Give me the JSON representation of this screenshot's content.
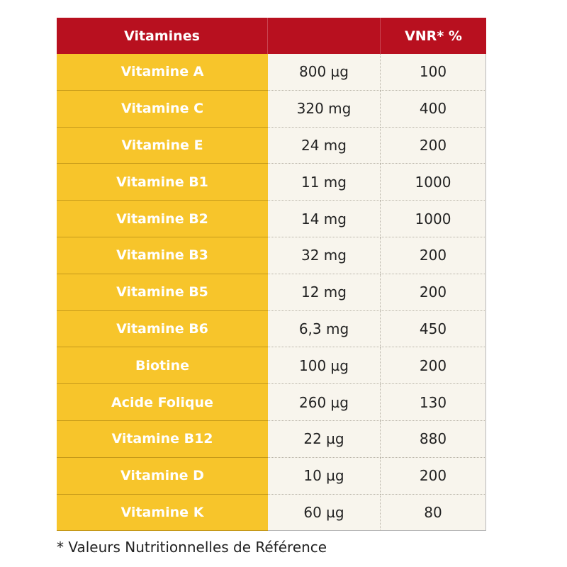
{
  "table": {
    "headers": [
      "Vitamines",
      "",
      "VNR* %"
    ],
    "rows": [
      {
        "name": "Vitamine A",
        "amount": "800 µg",
        "vnr": "100"
      },
      {
        "name": "Vitamine C",
        "amount": "320 mg",
        "vnr": "400"
      },
      {
        "name": "Vitamine E",
        "amount": "24 mg",
        "vnr": "200"
      },
      {
        "name": "Vitamine B1",
        "amount": "11 mg",
        "vnr": "1000"
      },
      {
        "name": "Vitamine B2",
        "amount": "14 mg",
        "vnr": "1000"
      },
      {
        "name": "Vitamine B3",
        "amount": "32 mg",
        "vnr": "200"
      },
      {
        "name": "Vitamine B5",
        "amount": "12 mg",
        "vnr": "200"
      },
      {
        "name": "Vitamine B6",
        "amount": "6,3 mg",
        "vnr": "450"
      },
      {
        "name": "Biotine",
        "amount": "100 µg",
        "vnr": "200"
      },
      {
        "name": "Acide Folique",
        "amount": "260 µg",
        "vnr": "130"
      },
      {
        "name": "Vitamine B12",
        "amount": "22 µg",
        "vnr": "880"
      },
      {
        "name": "Vitamine D",
        "amount": "10 µg",
        "vnr": "200"
      },
      {
        "name": "Vitamine K",
        "amount": "60 µg",
        "vnr": "80"
      }
    ]
  },
  "footnote": "*  Valeurs Nutritionnelles de Référence",
  "colors": {
    "header": "#b8101f",
    "name_col": "#f7c52b",
    "value_bg": "#f8f5ed"
  }
}
